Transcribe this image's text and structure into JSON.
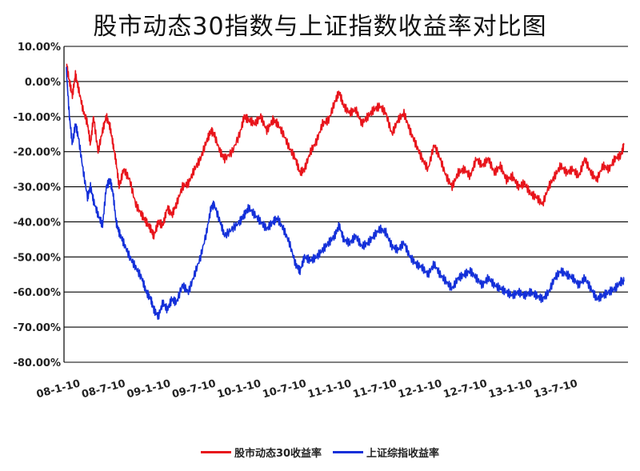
{
  "chart_data": {
    "type": "line",
    "title": "股市动态30指数与上证指数收益率对比图",
    "xlabel": "",
    "ylabel": "",
    "ylim": [
      -80,
      10
    ],
    "y_ticks": [
      "10.00%",
      "0.00%",
      "-10.00%",
      "-20.00%",
      "-30.00%",
      "-40.00%",
      "-50.00%",
      "-60.00%",
      "-70.00%",
      "-80.00%"
    ],
    "x_ticks": [
      {
        "label": "08-1-10",
        "t": 0
      },
      {
        "label": "08-7-10",
        "t": 6
      },
      {
        "label": "09-1-10",
        "t": 12
      },
      {
        "label": "09-7-10",
        "t": 18
      },
      {
        "label": "10-1-10",
        "t": 24
      },
      {
        "label": "10-7-10",
        "t": 30
      },
      {
        "label": "11-1-10",
        "t": 36
      },
      {
        "label": "11-7-10",
        "t": 42
      },
      {
        "label": "12-1-10",
        "t": 48
      },
      {
        "label": "12-7-10",
        "t": 54
      },
      {
        "label": "13-1-10",
        "t": 60
      },
      {
        "label": "13-7-10",
        "t": 66
      }
    ],
    "grid": true,
    "legend_position": "bottom",
    "series": [
      {
        "name": "股市动态30收益率",
        "color": "#e8141b",
        "points": [
          [
            0,
            5
          ],
          [
            0.4,
            0
          ],
          [
            0.8,
            -4
          ],
          [
            1.2,
            2
          ],
          [
            1.6,
            -2
          ],
          [
            2.2,
            -8
          ],
          [
            2.8,
            -12
          ],
          [
            3.2,
            -18
          ],
          [
            3.6,
            -10
          ],
          [
            4.2,
            -20
          ],
          [
            4.8,
            -14
          ],
          [
            5.3,
            -10
          ],
          [
            5.8,
            -13
          ],
          [
            6.2,
            -18
          ],
          [
            6.6,
            -23
          ],
          [
            7.0,
            -30
          ],
          [
            7.6,
            -25
          ],
          [
            8.4,
            -28
          ],
          [
            9.2,
            -35
          ],
          [
            10,
            -38
          ],
          [
            10.6,
            -40
          ],
          [
            11.2,
            -42
          ],
          [
            11.6,
            -44
          ],
          [
            12.2,
            -40
          ],
          [
            12.8,
            -41
          ],
          [
            13.4,
            -36
          ],
          [
            14,
            -38
          ],
          [
            14.6,
            -35
          ],
          [
            15.4,
            -30
          ],
          [
            16.2,
            -29
          ],
          [
            17,
            -25
          ],
          [
            17.8,
            -22
          ],
          [
            18.6,
            -17
          ],
          [
            19.2,
            -14
          ],
          [
            19.6,
            -15
          ],
          [
            20.4,
            -20
          ],
          [
            21,
            -22
          ],
          [
            22,
            -20
          ],
          [
            23,
            -15
          ],
          [
            23.6,
            -10
          ],
          [
            24.2,
            -11
          ],
          [
            25,
            -12
          ],
          [
            25.8,
            -10
          ],
          [
            26.6,
            -14
          ],
          [
            27.4,
            -11
          ],
          [
            28,
            -12
          ],
          [
            28.8,
            -15
          ],
          [
            29.6,
            -19
          ],
          [
            30.4,
            -22
          ],
          [
            31,
            -26
          ],
          [
            31.6,
            -25
          ],
          [
            32.4,
            -20
          ],
          [
            33.2,
            -17
          ],
          [
            34,
            -12
          ],
          [
            34.8,
            -11
          ],
          [
            35.6,
            -6
          ],
          [
            36.2,
            -3
          ],
          [
            36.8,
            -7
          ],
          [
            37.6,
            -9
          ],
          [
            38.4,
            -8
          ],
          [
            39.2,
            -12
          ],
          [
            40,
            -10
          ],
          [
            40.8,
            -8
          ],
          [
            41.6,
            -7
          ],
          [
            42.4,
            -9
          ],
          [
            43.2,
            -15
          ],
          [
            44,
            -11
          ],
          [
            44.8,
            -9
          ],
          [
            45.6,
            -14
          ],
          [
            46.4,
            -18
          ],
          [
            47.2,
            -22
          ],
          [
            48,
            -25
          ],
          [
            48.8,
            -18
          ],
          [
            49.6,
            -22
          ],
          [
            50.4,
            -27
          ],
          [
            51.2,
            -30
          ],
          [
            52,
            -26
          ],
          [
            52.8,
            -25
          ],
          [
            53.6,
            -27
          ],
          [
            54.4,
            -22
          ],
          [
            55.2,
            -24
          ],
          [
            56,
            -22
          ],
          [
            56.8,
            -26
          ],
          [
            57.6,
            -24
          ],
          [
            58.4,
            -28
          ],
          [
            59.2,
            -27
          ],
          [
            60,
            -30
          ],
          [
            60.8,
            -29
          ],
          [
            61.6,
            -32
          ],
          [
            62.4,
            -33
          ],
          [
            63.2,
            -35
          ],
          [
            64,
            -30
          ],
          [
            64.8,
            -27
          ],
          [
            65.6,
            -24
          ],
          [
            66.4,
            -26
          ],
          [
            67.2,
            -25
          ],
          [
            68,
            -27
          ],
          [
            68.8,
            -22
          ],
          [
            69.6,
            -26
          ],
          [
            70.4,
            -28
          ],
          [
            71.2,
            -24
          ],
          [
            72,
            -25
          ],
          [
            72.8,
            -22
          ],
          [
            73.6,
            -21
          ],
          [
            74,
            -18
          ]
        ]
      },
      {
        "name": "上证综指收益率",
        "color": "#1430d9",
        "points": [
          [
            0,
            3
          ],
          [
            0.4,
            -10
          ],
          [
            0.8,
            -18
          ],
          [
            1.2,
            -12
          ],
          [
            1.6,
            -16
          ],
          [
            2.2,
            -25
          ],
          [
            2.8,
            -33
          ],
          [
            3.2,
            -30
          ],
          [
            3.6,
            -34
          ],
          [
            4.2,
            -38
          ],
          [
            4.8,
            -41
          ],
          [
            5.3,
            -30
          ],
          [
            5.8,
            -28
          ],
          [
            6.2,
            -32
          ],
          [
            6.6,
            -40
          ],
          [
            7.0,
            -43
          ],
          [
            7.6,
            -46
          ],
          [
            8.4,
            -50
          ],
          [
            9.2,
            -53
          ],
          [
            10,
            -56
          ],
          [
            10.6,
            -60
          ],
          [
            11.2,
            -62
          ],
          [
            11.6,
            -65
          ],
          [
            12.2,
            -67
          ],
          [
            12.8,
            -63
          ],
          [
            13.4,
            -65
          ],
          [
            14,
            -62
          ],
          [
            14.6,
            -63
          ],
          [
            15.4,
            -58
          ],
          [
            16.2,
            -60
          ],
          [
            17,
            -55
          ],
          [
            17.8,
            -50
          ],
          [
            18.6,
            -43
          ],
          [
            19.2,
            -36
          ],
          [
            19.6,
            -35
          ],
          [
            20.4,
            -40
          ],
          [
            21,
            -44
          ],
          [
            22,
            -42
          ],
          [
            23,
            -40
          ],
          [
            23.6,
            -38
          ],
          [
            24.2,
            -36
          ],
          [
            25,
            -38
          ],
          [
            25.8,
            -40
          ],
          [
            26.6,
            -42
          ],
          [
            27.4,
            -40
          ],
          [
            28,
            -39
          ],
          [
            28.8,
            -42
          ],
          [
            29.6,
            -46
          ],
          [
            30.4,
            -52
          ],
          [
            31,
            -54
          ],
          [
            31.6,
            -50
          ],
          [
            32.4,
            -51
          ],
          [
            33.2,
            -50
          ],
          [
            34,
            -48
          ],
          [
            34.8,
            -46
          ],
          [
            35.6,
            -44
          ],
          [
            36.2,
            -41
          ],
          [
            36.8,
            -45
          ],
          [
            37.6,
            -46
          ],
          [
            38.4,
            -44
          ],
          [
            39.2,
            -47
          ],
          [
            40,
            -46
          ],
          [
            40.8,
            -44
          ],
          [
            41.6,
            -42
          ],
          [
            42.4,
            -43
          ],
          [
            43.2,
            -47
          ],
          [
            44,
            -48
          ],
          [
            44.8,
            -46
          ],
          [
            45.6,
            -50
          ],
          [
            46.4,
            -52
          ],
          [
            47.2,
            -53
          ],
          [
            48,
            -55
          ],
          [
            48.8,
            -52
          ],
          [
            49.6,
            -55
          ],
          [
            50.4,
            -57
          ],
          [
            51.2,
            -59
          ],
          [
            52,
            -56
          ],
          [
            52.8,
            -55
          ],
          [
            53.6,
            -54
          ],
          [
            54.4,
            -56
          ],
          [
            55.2,
            -58
          ],
          [
            56,
            -56
          ],
          [
            56.8,
            -58
          ],
          [
            57.6,
            -59
          ],
          [
            58.4,
            -60
          ],
          [
            59.2,
            -61
          ],
          [
            60,
            -60
          ],
          [
            60.8,
            -61
          ],
          [
            61.6,
            -60
          ],
          [
            62.4,
            -61
          ],
          [
            63.2,
            -62
          ],
          [
            64,
            -60
          ],
          [
            64.8,
            -56
          ],
          [
            65.6,
            -54
          ],
          [
            66.4,
            -55
          ],
          [
            67.2,
            -56
          ],
          [
            68,
            -58
          ],
          [
            68.8,
            -56
          ],
          [
            69.6,
            -59
          ],
          [
            70.4,
            -62
          ],
          [
            71.2,
            -61
          ],
          [
            72,
            -60
          ],
          [
            72.8,
            -59
          ],
          [
            73.6,
            -57
          ],
          [
            74,
            -57
          ]
        ]
      }
    ]
  }
}
